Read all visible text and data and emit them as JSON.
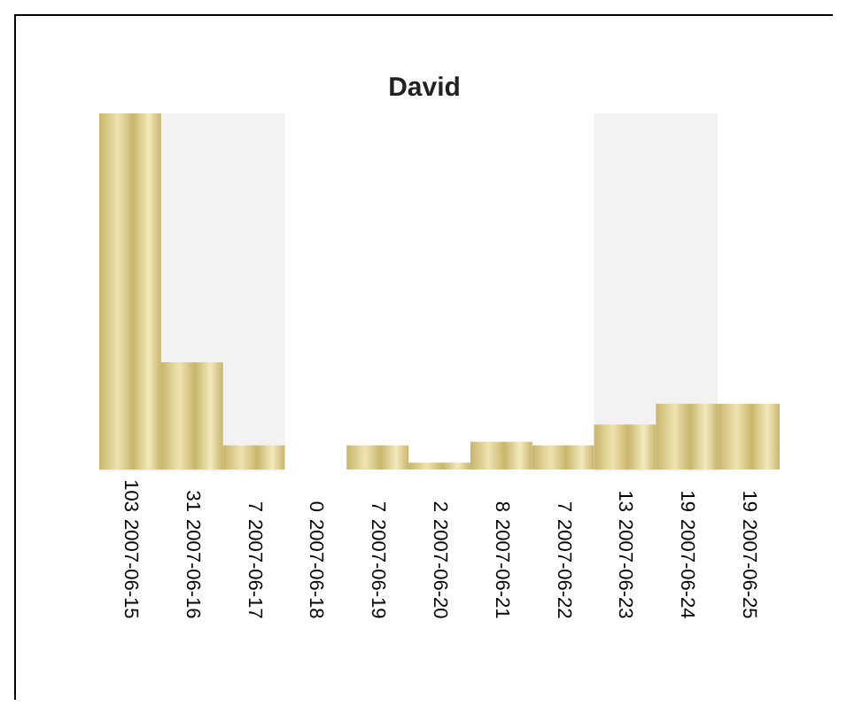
{
  "chart_data": {
    "type": "bar",
    "title": "David",
    "categories": [
      "2007-06-15",
      "2007-06-16",
      "2007-06-17",
      "2007-06-18",
      "2007-06-19",
      "2007-06-20",
      "2007-06-21",
      "2007-06-22",
      "2007-06-23",
      "2007-06-24",
      "2007-06-25"
    ],
    "values": [
      103,
      31,
      7,
      0,
      7,
      2,
      8,
      7,
      13,
      19,
      19
    ],
    "data_labels": true,
    "color": "#c8b66c",
    "bands": [
      {
        "axis": "x",
        "from": "2007-06-15",
        "to": "2007-06-17",
        "color": "#f2f2f2"
      },
      {
        "axis": "x",
        "from": "2007-06-23",
        "to": "2007-06-24",
        "color": "#f2f2f2"
      }
    ],
    "grid": false
  }
}
